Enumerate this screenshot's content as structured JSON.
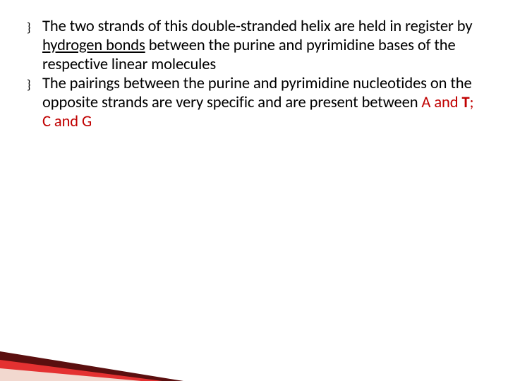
{
  "slide": {
    "background_color": "#ffffff",
    "text_color": "#000000",
    "accent_red": "#c00000",
    "wedge_colors": {
      "dark": "#5b0f0f",
      "red": "#e43131",
      "pale": "#f2d8cf"
    },
    "body_fontsize": 22.5,
    "body_lineheight": 27,
    "bullets": [
      {
        "marker": "}",
        "pre1": "The two strands of  this double-stranded helix are held in register by ",
        "u1": "hydrogen bonds",
        "post1": " between the purine and pyrimidine bases of the respective linear molecules"
      },
      {
        "marker": "}",
        "pre2": "The pairings between the purine and pyrimidine nucleotides on the opposite strands are very specific and are present between ",
        "a": "A",
        "and1": " and ",
        "t": "T",
        "sep": "; ",
        "c": "C",
        "and2": " and ",
        "g": "G"
      }
    ]
  }
}
